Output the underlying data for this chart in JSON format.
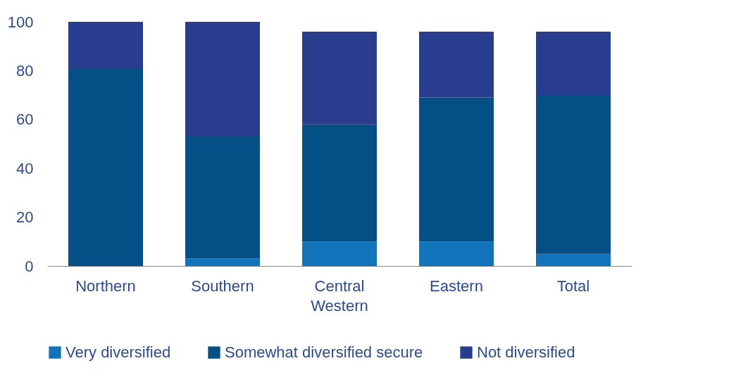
{
  "chart_data": {
    "type": "bar",
    "stacked": true,
    "categories": [
      "Northern",
      "Southern",
      "Central Western",
      "Eastern",
      "Total"
    ],
    "series": [
      {
        "name": "Very diversified",
        "color": "#1173ba",
        "values": [
          0,
          3,
          10,
          10,
          5
        ]
      },
      {
        "name": "Somewhat diversified secure",
        "color": "#034f86",
        "values": [
          81,
          50,
          48,
          59,
          65
        ]
      },
      {
        "name": "Not diversified",
        "color": "#283d8e",
        "values": [
          19,
          47,
          38,
          27,
          26
        ]
      }
    ],
    "ylim": [
      0,
      100
    ],
    "yticks": [
      0,
      20,
      40,
      60,
      80,
      100
    ],
    "grid": false,
    "legend": "bottom"
  }
}
